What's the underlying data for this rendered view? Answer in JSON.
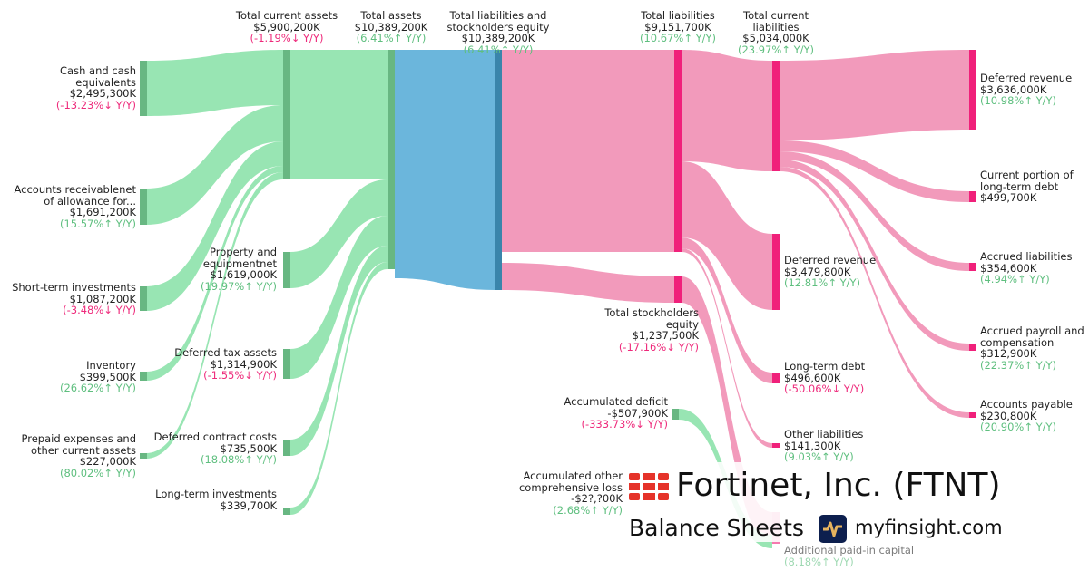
{
  "colors": {
    "asset_flow": "#98e5b3",
    "asset_node": "#68b782",
    "total_flow": "#6bb6dc",
    "total_node": "#3a85ab",
    "liab_flow": "#f29abb",
    "liab_node": "#f0207a"
  },
  "nodes": {
    "cash": {
      "name": "Cash and cash equivalents",
      "value": "$2,495,300K",
      "change": "(-13.23%↓ Y/Y)"
    },
    "ar": {
      "name": "Accounts receivablenet of allowance for...",
      "value": "$1,691,200K",
      "change": "(15.57%↑ Y/Y)"
    },
    "sti": {
      "name": "Short-term investments",
      "value": "$1,087,200K",
      "change": "(-3.48%↓ Y/Y)"
    },
    "inv": {
      "name": "Inventory",
      "value": "$399,500K",
      "change": "(26.62%↑ Y/Y)"
    },
    "prepaid": {
      "name": "Prepaid expenses and other current assets",
      "value": "$227,000K",
      "change": "(80.02%↑ Y/Y)"
    },
    "tca": {
      "name": "Total current assets",
      "value": "$5,900,200K",
      "change": "(-1.19%↓ Y/Y)"
    },
    "ppe": {
      "name": "Property and equipmentnet",
      "value": "$1,619,000K",
      "change": "(19.97%↑ Y/Y)"
    },
    "dta": {
      "name": "Deferred tax assets",
      "value": "$1,314,900K",
      "change": "(-1.55%↓ Y/Y)"
    },
    "dcc": {
      "name": "Deferred contract costs",
      "value": "$735,500K",
      "change": "(18.08%↑ Y/Y)"
    },
    "lti": {
      "name": "Long-term investments",
      "value": "$339,700K"
    },
    "ta": {
      "name": "Total assets",
      "value": "$10,389,200K",
      "change": "(6.41%↑ Y/Y)"
    },
    "tlse": {
      "name": "Total liabilities and stockholders equity",
      "value": "$10,389,200K",
      "change": "(6.41%↑ Y/Y)"
    },
    "tl": {
      "name": "Total liabilities",
      "value": "$9,151,700K",
      "change": "(10.67%↑ Y/Y)"
    },
    "tse": {
      "name": "Total stockholders equity",
      "value": "$1,237,500K",
      "change": "(-17.16%↓ Y/Y)"
    },
    "tcl": {
      "name": "Total current liabilities",
      "value": "$5,034,000K",
      "change": "(23.97%↑ Y/Y)"
    },
    "dr_nc": {
      "name": "Deferred revenue",
      "value": "$3,479,800K",
      "change": "(12.81%↑ Y/Y)"
    },
    "ltd": {
      "name": "Long-term debt",
      "value": "$496,600K",
      "change": "(-50.06%↓ Y/Y)"
    },
    "ol": {
      "name": "Other liabilities",
      "value": "$141,300K",
      "change": "(9.03%↑ Y/Y)"
    },
    "deficit": {
      "name": "Accumulated deficit",
      "value": "-$507,900K",
      "change": "(-333.73%↓ Y/Y)"
    },
    "aoci": {
      "name": "Accumulated other comprehensive loss",
      "value": "-$2?,?00K",
      "change": "(2.68%↑ Y/Y)"
    },
    "apic": {
      "name": "Additional paid-in capital",
      "change": "(8.18%↑ Y/Y)"
    },
    "dr_c": {
      "name": "Deferred revenue",
      "value": "$3,636,000K",
      "change": "(10.98%↑ Y/Y)"
    },
    "cpltd": {
      "name": "Current portion of long-term debt",
      "value": "$499,700K"
    },
    "al": {
      "name": "Accrued liabilities",
      "value": "$354,600K",
      "change": "(4.94%↑ Y/Y)"
    },
    "apc": {
      "name": "Accrued payroll and compensation",
      "value": "$312,900K",
      "change": "(22.37%↑ Y/Y)"
    },
    "ap": {
      "name": "Accounts payable",
      "value": "$230,800K",
      "change": "(20.90%↑ Y/Y)"
    }
  },
  "branding": {
    "company": "Fortinet, Inc. (FTNT)",
    "subtitle": "Balance Sheets",
    "site": "myfinsight.com"
  }
}
